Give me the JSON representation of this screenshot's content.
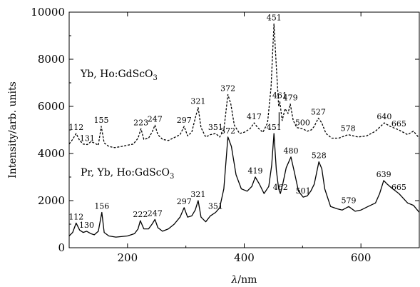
{
  "chart_data": {
    "type": "line",
    "xlabel_symbol": "λ",
    "xlabel_unit": "/nm",
    "ylabel": "Intensity/arb. units",
    "xlim": [
      100,
      700
    ],
    "ylim": [
      0,
      10000
    ],
    "xticks": [
      200,
      400,
      600
    ],
    "yticks": [
      0,
      2000,
      4000,
      6000,
      8000,
      10000
    ],
    "series": [
      {
        "name_prefix": "Yb, Ho:GdScO",
        "name_subscript": "3",
        "style": "dashed",
        "x": [
          100,
          106,
          112,
          118,
          124,
          131,
          137,
          143,
          150,
          155,
          160,
          168,
          178,
          190,
          200,
          210,
          218,
          223,
          228,
          236,
          242,
          247,
          252,
          260,
          270,
          282,
          290,
          297,
          303,
          310,
          316,
          321,
          326,
          334,
          342,
          351,
          358,
          365,
          372,
          377,
          383,
          392,
          400,
          410,
          417,
          423,
          432,
          440,
          446,
          451,
          455,
          459,
          461,
          465,
          470,
          475,
          479,
          484,
          490,
          500,
          508,
          515,
          520,
          527,
          533,
          540,
          550,
          562,
          578,
          595,
          610,
          625,
          640,
          650,
          665,
          680,
          690,
          700
        ],
        "y": [
          4400,
          4600,
          4850,
          4550,
          4400,
          4380,
          4500,
          4450,
          4350,
          5150,
          4450,
          4300,
          4250,
          4300,
          4350,
          4400,
          4650,
          5050,
          4600,
          4650,
          4900,
          5200,
          4800,
          4600,
          4550,
          4700,
          4800,
          5150,
          4750,
          4900,
          5500,
          5950,
          5100,
          4700,
          4800,
          4850,
          4700,
          5000,
          6500,
          6100,
          5200,
          4850,
          4900,
          5050,
          5300,
          5100,
          4900,
          5300,
          6800,
          9500,
          7700,
          6000,
          6200,
          5400,
          5900,
          5700,
          6100,
          5400,
          5100,
          5050,
          4950,
          5000,
          5150,
          5500,
          5300,
          4850,
          4650,
          4650,
          4800,
          4700,
          4750,
          4950,
          5300,
          5150,
          5000,
          4800,
          4950,
          4650
        ]
      },
      {
        "name_prefix": "Pr, Yb, Ho:GdScO",
        "name_subscript": "3",
        "style": "solid",
        "x": [
          100,
          106,
          112,
          118,
          124,
          130,
          137,
          143,
          150,
          156,
          160,
          168,
          180,
          200,
          212,
          218,
          222,
          228,
          236,
          242,
          247,
          252,
          260,
          270,
          280,
          290,
          297,
          303,
          310,
          316,
          321,
          326,
          334,
          342,
          351,
          358,
          365,
          372,
          378,
          386,
          395,
          405,
          413,
          419,
          426,
          434,
          442,
          447,
          451,
          455,
          459,
          462,
          466,
          472,
          480,
          486,
          493,
          501,
          508,
          514,
          520,
          528,
          533,
          538,
          548,
          560,
          568,
          579,
          590,
          600,
          612,
          625,
          632,
          639,
          645,
          652,
          665,
          680,
          690,
          700
        ],
        "y": [
          500,
          650,
          1050,
          750,
          650,
          700,
          600,
          550,
          700,
          1500,
          650,
          500,
          450,
          500,
          600,
          800,
          1150,
          800,
          800,
          1000,
          1200,
          850,
          700,
          800,
          1000,
          1300,
          1700,
          1300,
          1350,
          1600,
          2000,
          1300,
          1100,
          1350,
          1500,
          1700,
          2500,
          4700,
          4300,
          3100,
          2500,
          2400,
          2600,
          3000,
          2700,
          2300,
          2600,
          3500,
          4850,
          3300,
          2500,
          2300,
          2700,
          3400,
          3850,
          3200,
          2400,
          2150,
          2200,
          2400,
          2700,
          3650,
          3350,
          2500,
          1750,
          1650,
          1600,
          1750,
          1550,
          1600,
          1750,
          1900,
          2300,
          2850,
          2700,
          2550,
          2300,
          1900,
          1800,
          1500
        ]
      }
    ],
    "peak_labels": [
      {
        "text": "112",
        "x": 112,
        "y": 4850
      },
      {
        "text": "131",
        "x": 131,
        "y": 4380
      },
      {
        "text": "155",
        "x": 155,
        "y": 5150
      },
      {
        "text": "223",
        "x": 223,
        "y": 5050
      },
      {
        "text": "247",
        "x": 247,
        "y": 5200
      },
      {
        "text": "297",
        "x": 297,
        "y": 5150
      },
      {
        "text": "321",
        "x": 321,
        "y": 5950
      },
      {
        "text": "351",
        "x": 351,
        "y": 4850
      },
      {
        "text": "372",
        "x": 372,
        "y": 6500
      },
      {
        "text": "417",
        "x": 417,
        "y": 5300
      },
      {
        "text": "451",
        "x": 451,
        "y": 9500
      },
      {
        "text": "461",
        "x": 461,
        "y": 6200
      },
      {
        "text": "479",
        "x": 479,
        "y": 6100
      },
      {
        "text": "500",
        "x": 500,
        "y": 5050
      },
      {
        "text": "527",
        "x": 527,
        "y": 5500
      },
      {
        "text": "578",
        "x": 578,
        "y": 4800
      },
      {
        "text": "640",
        "x": 640,
        "y": 5300
      },
      {
        "text": "665",
        "x": 665,
        "y": 5000
      },
      {
        "text": "112",
        "x": 112,
        "y": 1050
      },
      {
        "text": "130",
        "x": 130,
        "y": 700
      },
      {
        "text": "156",
        "x": 156,
        "y": 1500
      },
      {
        "text": "222",
        "x": 222,
        "y": 1150
      },
      {
        "text": "247",
        "x": 247,
        "y": 1200
      },
      {
        "text": "297",
        "x": 297,
        "y": 1700
      },
      {
        "text": "321",
        "x": 321,
        "y": 2000
      },
      {
        "text": "351",
        "x": 351,
        "y": 1500
      },
      {
        "text": "372",
        "x": 372,
        "y": 4700
      },
      {
        "text": "419",
        "x": 419,
        "y": 3000
      },
      {
        "text": "451",
        "x": 451,
        "y": 4850
      },
      {
        "text": "462",
        "x": 462,
        "y": 2300
      },
      {
        "text": "480",
        "x": 480,
        "y": 3850
      },
      {
        "text": "501",
        "x": 501,
        "y": 2150
      },
      {
        "text": "528",
        "x": 528,
        "y": 3650
      },
      {
        "text": "579",
        "x": 579,
        "y": 1750
      },
      {
        "text": "639",
        "x": 639,
        "y": 2850
      },
      {
        "text": "665",
        "x": 665,
        "y": 2300
      }
    ]
  }
}
